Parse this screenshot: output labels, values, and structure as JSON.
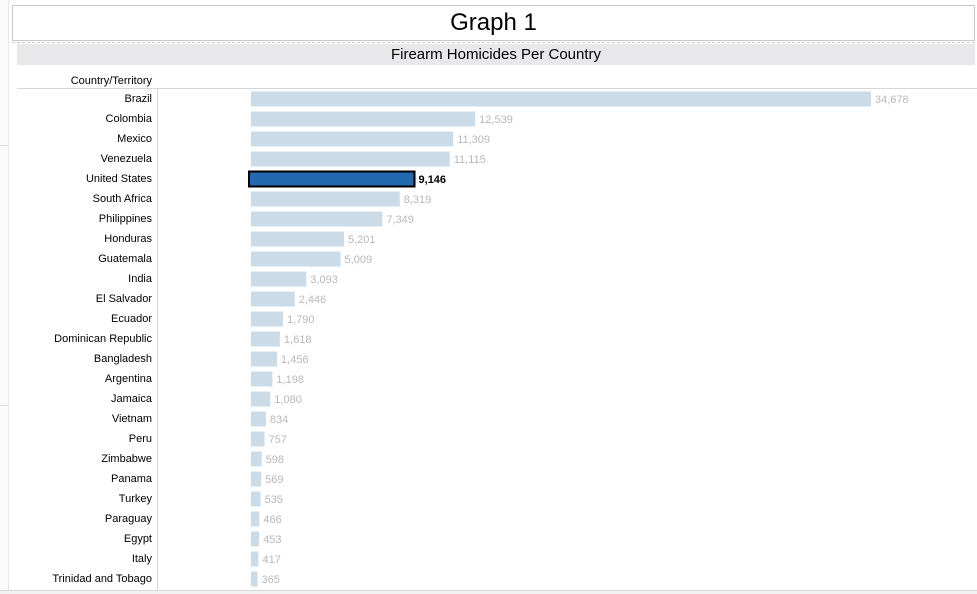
{
  "dashboard_title": "Graph 1",
  "chart_data": {
    "type": "bar",
    "orientation": "horizontal",
    "title": "Firearm Homicides Per Country",
    "row_header": "Country/Territory",
    "categories": [
      "Brazil",
      "Colombia",
      "Mexico",
      "Venezuela",
      "United States",
      "South Africa",
      "Philippines",
      "Honduras",
      "Guatemala",
      "India",
      "El Salvador",
      "Ecuador",
      "Dominican Republic",
      "Bangladesh",
      "Argentina",
      "Jamaica",
      "Vietnam",
      "Peru",
      "Zimbabwe",
      "Panama",
      "Turkey",
      "Paraguay",
      "Egypt",
      "Italy",
      "Trinidad and Tobago"
    ],
    "values": [
      34678,
      12539,
      11309,
      11115,
      9146,
      8319,
      7349,
      5201,
      5009,
      3093,
      2446,
      1790,
      1618,
      1456,
      1198,
      1080,
      834,
      757,
      598,
      569,
      535,
      466,
      453,
      417,
      365
    ],
    "value_labels": [
      "34,678",
      "12,539",
      "11,309",
      "11,115",
      "9,146",
      "8,319",
      "7,349",
      "5,201",
      "5,009",
      "3,093",
      "2,446",
      "1,790",
      "1,618",
      "1,456",
      "1,198",
      "1,080",
      "834",
      "757",
      "598",
      "569",
      "535",
      "466",
      "453",
      "417",
      "365"
    ],
    "highlighted": "United States",
    "colors": {
      "bar": "#ccdbe8",
      "highlight": "#2369b0",
      "label": "#b8b8b8",
      "highlight_label": "#000000"
    },
    "grid": false,
    "legend": "none"
  }
}
